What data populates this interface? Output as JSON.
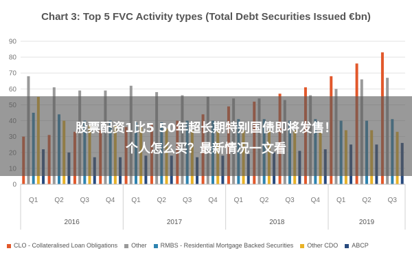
{
  "chart_data": {
    "type": "bar",
    "title": "Chart 3: Top 5 FVC Activity types (Total Debt Securities Issued €bn)",
    "ylim": [
      0,
      90
    ],
    "yticks": [
      0,
      10,
      20,
      30,
      40,
      50,
      60,
      70,
      80,
      90
    ],
    "grid": true,
    "legend_position": "bottom",
    "categories": [
      "Q1",
      "Q2",
      "Q3",
      "Q4",
      "Q1",
      "Q2",
      "Q3",
      "Q4",
      "Q1",
      "Q2",
      "Q3",
      "Q4",
      "Q1",
      "Q2",
      "Q3"
    ],
    "groups": [
      {
        "label": "2016",
        "start": 0,
        "end": 3
      },
      {
        "label": "2017",
        "start": 4,
        "end": 7
      },
      {
        "label": "2018",
        "start": 8,
        "end": 11
      },
      {
        "label": "2019",
        "start": 12,
        "end": 14
      }
    ],
    "series": [
      {
        "name": "CLO - Collateralised Loan Obligations",
        "color": "#e2582b",
        "values": [
          30,
          31,
          33,
          34,
          36,
          38,
          40,
          44,
          49,
          52,
          57,
          61,
          68,
          76,
          83
        ]
      },
      {
        "name": "Other",
        "color": "#9a9a9a",
        "values": [
          68,
          61,
          59,
          59,
          62,
          58,
          56,
          55,
          54,
          54,
          53,
          56,
          60,
          66,
          67
        ]
      },
      {
        "name": "RMBS - Residential Mortgage Backed Securities",
        "color": "#2e84b0",
        "values": [
          45,
          44,
          40,
          40,
          39,
          39,
          40,
          40,
          41,
          41,
          40,
          41,
          40,
          40,
          41
        ]
      },
      {
        "name": "Other CDO",
        "color": "#e9b227",
        "values": [
          55,
          40,
          37,
          37,
          36,
          35,
          34,
          34,
          34,
          34,
          34,
          33,
          34,
          34,
          33
        ]
      },
      {
        "name": "ABCP",
        "color": "#284a7e",
        "values": [
          22,
          20,
          17,
          17,
          18,
          18,
          17,
          18,
          19,
          20,
          21,
          22,
          25,
          25,
          26
        ]
      }
    ]
  },
  "overlay": {
    "line1": "股票配资1比5 50年超长期特别国债即将发售！",
    "line2": "个人怎么买？最新情况一文看"
  }
}
